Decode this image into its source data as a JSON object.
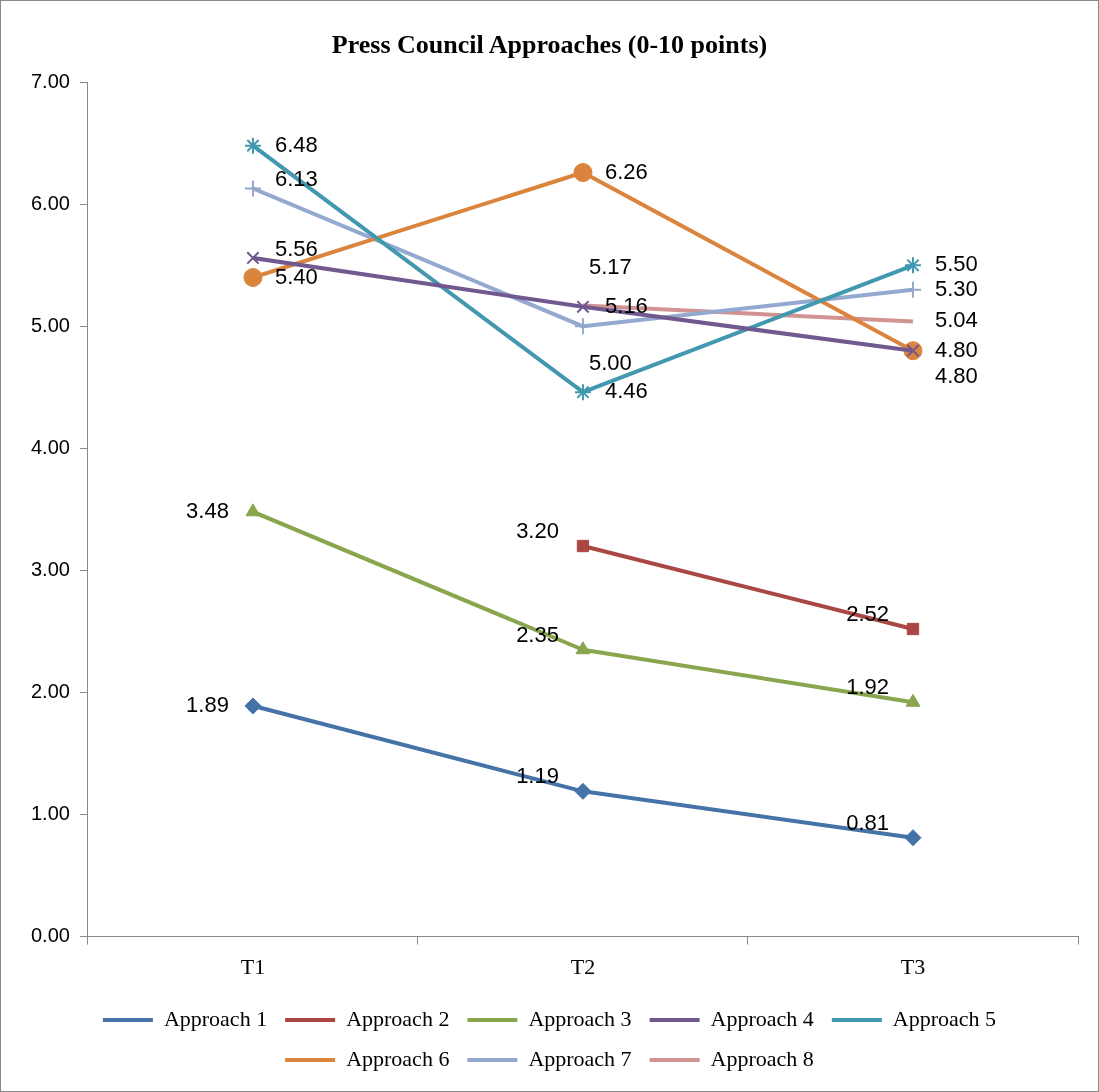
{
  "chart_data": {
    "type": "line",
    "title": "Press Council Approaches (0-10 points)",
    "categories": [
      "T1",
      "T2",
      "T3"
    ],
    "series": [
      {
        "name": "Approach 1",
        "color": "#4572a7",
        "marker": "diamond",
        "values": [
          1.89,
          1.19,
          0.81
        ],
        "value_labels": [
          "1.89",
          "1.19",
          "0.81"
        ]
      },
      {
        "name": "Approach 2",
        "color": "#aa4643",
        "marker": "square",
        "values": [
          null,
          3.2,
          2.52
        ],
        "value_labels": [
          null,
          "3.20",
          "2.52"
        ]
      },
      {
        "name": "Approach 3",
        "color": "#89a54e",
        "marker": "triangle",
        "values": [
          3.48,
          2.35,
          1.92
        ],
        "value_labels": [
          "3.48",
          "2.35",
          "1.92"
        ]
      },
      {
        "name": "Approach 4",
        "color": "#71588f",
        "marker": "cross",
        "values": [
          5.56,
          5.16,
          4.8
        ],
        "value_labels": [
          "5.56",
          "5.16",
          "4.80"
        ]
      },
      {
        "name": "Approach 5",
        "color": "#4198af",
        "marker": "cross",
        "values": [
          6.48,
          4.46,
          5.5
        ],
        "value_labels": [
          "6.48",
          "4.46",
          "5.50"
        ]
      },
      {
        "name": "Approach 6",
        "color": "#db843d",
        "marker": "circle",
        "values": [
          5.4,
          6.26,
          4.8
        ],
        "value_labels": [
          "5.40",
          "6.26",
          "4.80"
        ]
      },
      {
        "name": "Approach 7",
        "color": "#93a9cf",
        "marker": "cross",
        "values": [
          6.13,
          5.0,
          5.3
        ],
        "value_labels": [
          "6.13",
          "5.00",
          "5.30"
        ]
      },
      {
        "name": "Approach 8",
        "color": "#d09392",
        "marker": "none",
        "values": [
          null,
          5.17,
          5.04
        ],
        "value_labels": [
          null,
          "5.17",
          "5.04"
        ]
      }
    ],
    "ylim": [
      0,
      7
    ],
    "yticks": [
      {
        "value": 0,
        "label": "0.00"
      },
      {
        "value": 1,
        "label": "1.00"
      },
      {
        "value": 2,
        "label": "2.00"
      },
      {
        "value": 3,
        "label": "3.00"
      },
      {
        "value": 4,
        "label": "4.00"
      },
      {
        "value": 5,
        "label": "5.00"
      },
      {
        "value": 6,
        "label": "6.00"
      },
      {
        "value": 7,
        "label": "7.00"
      }
    ],
    "grid": false,
    "legend": "bottom"
  }
}
